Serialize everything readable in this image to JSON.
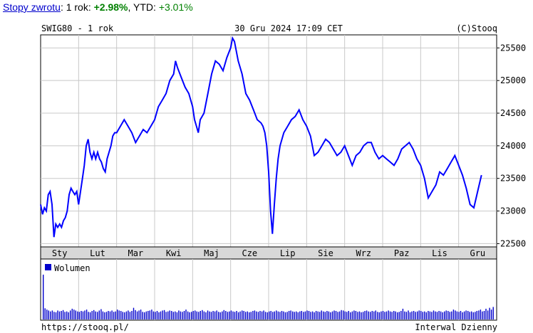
{
  "header": {
    "link_label": "Stopy zwrotu",
    "period_label": ": 1 rok: ",
    "period_value": "+2.98%",
    "ytd_label": ", YTD: ",
    "ytd_value": "+3.01%"
  },
  "chart_info": {
    "left": "SWIG80 - 1 rok",
    "center": "30 Gru 2024 17:09 CET",
    "right": "(C)Stooq"
  },
  "footer": {
    "url": "https://stooq.pl/",
    "interval": "Interwal Dzienny"
  },
  "colors": {
    "series": "#0000ff",
    "grid": "#c8c8c8",
    "band": "#d8d8d8"
  },
  "chart_data": {
    "type": "line",
    "x_months": [
      "Sty",
      "Lut",
      "Mar",
      "Kwi",
      "Maj",
      "Cze",
      "Lip",
      "Sie",
      "Wrz",
      "Paz",
      "Lis",
      "Gru"
    ],
    "ylim": [
      22450,
      25700
    ],
    "yticks": [
      22500,
      23000,
      23500,
      24000,
      24500,
      25000,
      25500
    ],
    "series_points": [
      [
        0.0,
        23100
      ],
      [
        0.05,
        22950
      ],
      [
        0.1,
        23050
      ],
      [
        0.15,
        23000
      ],
      [
        0.2,
        23250
      ],
      [
        0.25,
        23300
      ],
      [
        0.3,
        23100
      ],
      [
        0.35,
        22600
      ],
      [
        0.4,
        22800
      ],
      [
        0.45,
        22750
      ],
      [
        0.5,
        22800
      ],
      [
        0.55,
        22750
      ],
      [
        0.6,
        22850
      ],
      [
        0.65,
        22900
      ],
      [
        0.7,
        23000
      ],
      [
        0.75,
        23250
      ],
      [
        0.8,
        23350
      ],
      [
        0.85,
        23300
      ],
      [
        0.9,
        23250
      ],
      [
        0.95,
        23300
      ],
      [
        1.0,
        23100
      ],
      [
        1.05,
        23300
      ],
      [
        1.1,
        23500
      ],
      [
        1.15,
        23700
      ],
      [
        1.2,
        24000
      ],
      [
        1.25,
        24100
      ],
      [
        1.3,
        23900
      ],
      [
        1.35,
        23800
      ],
      [
        1.4,
        23900
      ],
      [
        1.45,
        23800
      ],
      [
        1.5,
        23900
      ],
      [
        1.55,
        23800
      ],
      [
        1.6,
        23750
      ],
      [
        1.65,
        23650
      ],
      [
        1.7,
        23600
      ],
      [
        1.75,
        23800
      ],
      [
        1.8,
        23900
      ],
      [
        1.85,
        24000
      ],
      [
        1.9,
        24150
      ],
      [
        1.95,
        24200
      ],
      [
        2.0,
        24200
      ],
      [
        2.1,
        24300
      ],
      [
        2.2,
        24400
      ],
      [
        2.3,
        24300
      ],
      [
        2.4,
        24200
      ],
      [
        2.5,
        24050
      ],
      [
        2.6,
        24150
      ],
      [
        2.7,
        24250
      ],
      [
        2.8,
        24200
      ],
      [
        2.9,
        24300
      ],
      [
        3.0,
        24400
      ],
      [
        3.1,
        24600
      ],
      [
        3.2,
        24700
      ],
      [
        3.3,
        24800
      ],
      [
        3.4,
        25000
      ],
      [
        3.5,
        25100
      ],
      [
        3.55,
        25300
      ],
      [
        3.6,
        25200
      ],
      [
        3.7,
        25050
      ],
      [
        3.8,
        24900
      ],
      [
        3.9,
        24800
      ],
      [
        4.0,
        24600
      ],
      [
        4.05,
        24400
      ],
      [
        4.1,
        24300
      ],
      [
        4.15,
        24200
      ],
      [
        4.2,
        24400
      ],
      [
        4.3,
        24500
      ],
      [
        4.4,
        24800
      ],
      [
        4.5,
        25100
      ],
      [
        4.6,
        25300
      ],
      [
        4.7,
        25250
      ],
      [
        4.8,
        25150
      ],
      [
        4.9,
        25350
      ],
      [
        5.0,
        25500
      ],
      [
        5.05,
        25650
      ],
      [
        5.1,
        25600
      ],
      [
        5.2,
        25300
      ],
      [
        5.3,
        25100
      ],
      [
        5.4,
        24800
      ],
      [
        5.5,
        24700
      ],
      [
        5.6,
        24550
      ],
      [
        5.7,
        24400
      ],
      [
        5.8,
        24350
      ],
      [
        5.85,
        24300
      ],
      [
        5.9,
        24200
      ],
      [
        5.95,
        24000
      ],
      [
        6.0,
        23600
      ],
      [
        6.05,
        23000
      ],
      [
        6.1,
        22650
      ],
      [
        6.15,
        23100
      ],
      [
        6.2,
        23500
      ],
      [
        6.25,
        23800
      ],
      [
        6.3,
        24000
      ],
      [
        6.4,
        24200
      ],
      [
        6.5,
        24300
      ],
      [
        6.6,
        24400
      ],
      [
        6.7,
        24450
      ],
      [
        6.8,
        24550
      ],
      [
        6.9,
        24400
      ],
      [
        7.0,
        24300
      ],
      [
        7.1,
        24150
      ],
      [
        7.2,
        23850
      ],
      [
        7.3,
        23900
      ],
      [
        7.4,
        24000
      ],
      [
        7.5,
        24100
      ],
      [
        7.6,
        24050
      ],
      [
        7.7,
        23950
      ],
      [
        7.8,
        23850
      ],
      [
        7.9,
        23900
      ],
      [
        8.0,
        24000
      ],
      [
        8.1,
        23850
      ],
      [
        8.2,
        23700
      ],
      [
        8.3,
        23850
      ],
      [
        8.4,
        23900
      ],
      [
        8.5,
        24000
      ],
      [
        8.6,
        24050
      ],
      [
        8.7,
        24050
      ],
      [
        8.8,
        23900
      ],
      [
        8.9,
        23800
      ],
      [
        9.0,
        23850
      ],
      [
        9.1,
        23800
      ],
      [
        9.2,
        23750
      ],
      [
        9.3,
        23700
      ],
      [
        9.4,
        23800
      ],
      [
        9.5,
        23950
      ],
      [
        9.6,
        24000
      ],
      [
        9.7,
        24050
      ],
      [
        9.8,
        23950
      ],
      [
        9.9,
        23800
      ],
      [
        10.0,
        23700
      ],
      [
        10.1,
        23500
      ],
      [
        10.2,
        23200
      ],
      [
        10.3,
        23300
      ],
      [
        10.4,
        23400
      ],
      [
        10.5,
        23600
      ],
      [
        10.6,
        23550
      ],
      [
        10.7,
        23650
      ],
      [
        10.8,
        23750
      ],
      [
        10.9,
        23850
      ],
      [
        11.0,
        23700
      ],
      [
        11.1,
        23550
      ],
      [
        11.2,
        23350
      ],
      [
        11.3,
        23100
      ],
      [
        11.4,
        23050
      ],
      [
        11.5,
        23300
      ],
      [
        11.6,
        23550
      ]
    ],
    "volume": {
      "legend": "Wolumen",
      "values": [
        1.0,
        0.25,
        0.22,
        0.2,
        0.18,
        0.2,
        0.17,
        0.16,
        0.2,
        0.18,
        0.19,
        0.21,
        0.17,
        0.18,
        0.16,
        0.2,
        0.24,
        0.22,
        0.2,
        0.18,
        0.17,
        0.19,
        0.18,
        0.2,
        0.22,
        0.17,
        0.16,
        0.19,
        0.21,
        0.18,
        0.17,
        0.2,
        0.23,
        0.18,
        0.16,
        0.17,
        0.19,
        0.18,
        0.2,
        0.17,
        0.18,
        0.22,
        0.2,
        0.19,
        0.17,
        0.16,
        0.18,
        0.2,
        0.17,
        0.19,
        0.26,
        0.21,
        0.18,
        0.2,
        0.22,
        0.17,
        0.16,
        0.18,
        0.19,
        0.2,
        0.22,
        0.18,
        0.17,
        0.19,
        0.16,
        0.18,
        0.2,
        0.21,
        0.17,
        0.18,
        0.2,
        0.19,
        0.17,
        0.18,
        0.16,
        0.2,
        0.18,
        0.17,
        0.19,
        0.22,
        0.18,
        0.16,
        0.17,
        0.19,
        0.2,
        0.18,
        0.17,
        0.19,
        0.21,
        0.18,
        0.16,
        0.2,
        0.18,
        0.17,
        0.19,
        0.18,
        0.2,
        0.17,
        0.16,
        0.18,
        0.21,
        0.19,
        0.17,
        0.18,
        0.2,
        0.18,
        0.17,
        0.19,
        0.16,
        0.18,
        0.2,
        0.19,
        0.17,
        0.18,
        0.16,
        0.17,
        0.19,
        0.2,
        0.18,
        0.17,
        0.19,
        0.18,
        0.2,
        0.17,
        0.16,
        0.18,
        0.19,
        0.17,
        0.18,
        0.2,
        0.18,
        0.17,
        0.19,
        0.18,
        0.16,
        0.17,
        0.19,
        0.2,
        0.18,
        0.17,
        0.18,
        0.16,
        0.18,
        0.19,
        0.17,
        0.18,
        0.2,
        0.19,
        0.17,
        0.18,
        0.16,
        0.19,
        0.18,
        0.17,
        0.2,
        0.18,
        0.17,
        0.19,
        0.18,
        0.16,
        0.18,
        0.2,
        0.19,
        0.17,
        0.18,
        0.21,
        0.2,
        0.18,
        0.17,
        0.19,
        0.16,
        0.18,
        0.2,
        0.19,
        0.17,
        0.18,
        0.16,
        0.17,
        0.19,
        0.2,
        0.18,
        0.17,
        0.19,
        0.18,
        0.2,
        0.17,
        0.16,
        0.18,
        0.19,
        0.17,
        0.18,
        0.2,
        0.18,
        0.17,
        0.19,
        0.18,
        0.16,
        0.17,
        0.19,
        0.24,
        0.18,
        0.17,
        0.2,
        0.16,
        0.18,
        0.19,
        0.17,
        0.18,
        0.2,
        0.19,
        0.17,
        0.18,
        0.16,
        0.19,
        0.18,
        0.17,
        0.2,
        0.18,
        0.17,
        0.19,
        0.18,
        0.16,
        0.18,
        0.2,
        0.19,
        0.17,
        0.18,
        0.22,
        0.2,
        0.18,
        0.17,
        0.19,
        0.16,
        0.18,
        0.2,
        0.19,
        0.17,
        0.18,
        0.16,
        0.17,
        0.19,
        0.2,
        0.22,
        0.18,
        0.19,
        0.24,
        0.2,
        0.26,
        0.22,
        0.28
      ]
    }
  }
}
